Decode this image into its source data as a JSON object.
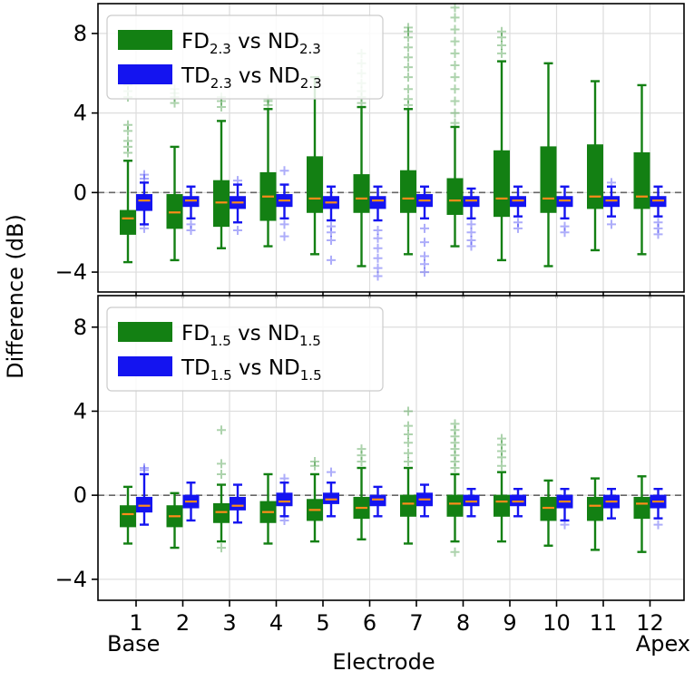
{
  "chart_data": {
    "type": "box",
    "xlabel": "Electrode",
    "ylabel": "Difference (dB)",
    "categories": [
      "1",
      "2",
      "3",
      "4",
      "5",
      "6",
      "7",
      "8",
      "9",
      "10",
      "11",
      "12"
    ],
    "x_end_labels": {
      "left": "Base",
      "right": "Apex"
    },
    "yticks": [
      -4,
      0,
      4,
      8
    ],
    "ytick_labels": [
      "−4",
      "0",
      "4",
      "8"
    ],
    "ylim": [
      -5,
      9.5
    ],
    "reference_line": 0,
    "grid": true,
    "colors": {
      "green": "#138013",
      "blue": "#1414f0",
      "median": "#ff8c1a",
      "reference": "#666666",
      "grid": "#dddddd"
    },
    "panels": [
      {
        "id": "top",
        "legend": [
          {
            "series": "FD",
            "text": "FD",
            "sub": "2.3",
            "mid": " vs ND",
            "sub2": "2.3",
            "color": "#138013"
          },
          {
            "series": "TD",
            "text": "TD",
            "sub": "2.3",
            "mid": " vs ND",
            "sub2": "2.3",
            "color": "#1414f0"
          }
        ],
        "series": [
          {
            "name": "FD2.3 vs ND2.3",
            "color": "#138013",
            "boxes": [
              {
                "whislo": -3.5,
                "q1": -2.1,
                "med": -1.3,
                "q3": -0.9,
                "whishi": 1.6,
                "fliers": [
                  2.0,
                  2.3,
                  2.6,
                  3.1,
                  3.4,
                  4.8,
                  5.1,
                  5.4
                ]
              },
              {
                "whislo": -3.4,
                "q1": -1.8,
                "med": -1.0,
                "q3": -0.1,
                "whishi": 2.3,
                "fliers": [
                  4.5,
                  4.8,
                  5.0,
                  5.2
                ]
              },
              {
                "whislo": -2.8,
                "q1": -1.7,
                "med": -0.5,
                "q3": 0.6,
                "whishi": 3.6,
                "fliers": [
                  4.3,
                  4.6,
                  4.8
                ]
              },
              {
                "whislo": -2.7,
                "q1": -1.4,
                "med": -0.2,
                "q3": 1.0,
                "whishi": 4.2,
                "fliers": [
                  4.4,
                  4.6,
                  4.7
                ]
              },
              {
                "whislo": -3.1,
                "q1": -1.0,
                "med": -0.3,
                "q3": 1.8,
                "whishi": 5.8,
                "fliers": []
              },
              {
                "whislo": -3.7,
                "q1": -1.0,
                "med": -0.3,
                "q3": 0.9,
                "whishi": 4.3,
                "fliers": [
                  4.5,
                  4.8,
                  5.1,
                  5.5,
                  6.0,
                  6.5,
                  7.0
                ]
              },
              {
                "whislo": -3.1,
                "q1": -1.0,
                "med": -0.3,
                "q3": 1.1,
                "whishi": 4.2,
                "fliers": [
                  4.4,
                  4.7,
                  5.2,
                  5.8,
                  6.3,
                  6.8,
                  7.3,
                  7.8,
                  8.1,
                  8.3
                ]
              },
              {
                "whislo": -2.7,
                "q1": -1.1,
                "med": -0.4,
                "q3": 0.7,
                "whishi": 3.3,
                "fliers": [
                  3.5,
                  4.0,
                  4.6,
                  5.2,
                  5.8,
                  6.4,
                  7.0,
                  7.6,
                  8.2,
                  8.8,
                  9.3
                ]
              },
              {
                "whislo": -3.4,
                "q1": -1.2,
                "med": -0.3,
                "q3": 2.1,
                "whishi": 6.6,
                "fliers": [
                  7.0,
                  7.4,
                  7.8,
                  8.1
                ]
              },
              {
                "whislo": -3.7,
                "q1": -1.0,
                "med": -0.3,
                "q3": 2.3,
                "whishi": 6.5,
                "fliers": []
              },
              {
                "whislo": -2.9,
                "q1": -0.8,
                "med": -0.2,
                "q3": 2.4,
                "whishi": 5.6,
                "fliers": []
              },
              {
                "whislo": -3.1,
                "q1": -0.8,
                "med": -0.2,
                "q3": 2.0,
                "whishi": 5.4,
                "fliers": []
              }
            ]
          },
          {
            "name": "TD2.3 vs ND2.3",
            "color": "#1414f0",
            "boxes": [
              {
                "whislo": -1.6,
                "q1": -0.9,
                "med": -0.4,
                "q3": -0.1,
                "whishi": 0.5,
                "fliers": [
                  -1.8,
                  0.7,
                  0.9
                ]
              },
              {
                "whislo": -1.3,
                "q1": -0.7,
                "med": -0.4,
                "q3": -0.2,
                "whishi": 0.3,
                "fliers": [
                  -1.6,
                  -1.9
                ]
              },
              {
                "whislo": -1.5,
                "q1": -0.8,
                "med": -0.5,
                "q3": -0.2,
                "whishi": 0.4,
                "fliers": [
                  -1.9,
                  0.6
                ]
              },
              {
                "whislo": -1.3,
                "q1": -0.7,
                "med": -0.4,
                "q3": -0.1,
                "whishi": 0.4,
                "fliers": [
                  -2.2,
                  -1.6,
                  1.1
                ]
              },
              {
                "whislo": -1.4,
                "q1": -0.8,
                "med": -0.5,
                "q3": -0.2,
                "whishi": 0.3,
                "fliers": [
                  -1.7,
                  -2.0,
                  -2.4,
                  -3.4
                ]
              },
              {
                "whislo": -1.4,
                "q1": -0.8,
                "med": -0.4,
                "q3": -0.2,
                "whishi": 0.3,
                "fliers": [
                  -1.9,
                  -2.3,
                  -2.8,
                  -3.3,
                  -3.8,
                  -4.2
                ]
              },
              {
                "whislo": -1.3,
                "q1": -0.7,
                "med": -0.4,
                "q3": -0.1,
                "whishi": 0.3,
                "fliers": [
                  -1.8,
                  -2.5,
                  -3.2,
                  -3.6,
                  -4.0
                ]
              },
              {
                "whislo": -1.3,
                "q1": -0.7,
                "med": -0.4,
                "q3": -0.2,
                "whishi": 0.2,
                "fliers": [
                  -1.6,
                  -2.0,
                  -2.4,
                  -2.7
                ]
              },
              {
                "whislo": -1.2,
                "q1": -0.7,
                "med": -0.4,
                "q3": -0.2,
                "whishi": 0.3,
                "fliers": [
                  -1.5,
                  -1.8
                ]
              },
              {
                "whislo": -1.3,
                "q1": -0.7,
                "med": -0.4,
                "q3": -0.2,
                "whishi": 0.3,
                "fliers": [
                  -1.7,
                  -2.0
                ]
              },
              {
                "whislo": -1.2,
                "q1": -0.7,
                "med": -0.4,
                "q3": -0.2,
                "whishi": 0.3,
                "fliers": [
                  -1.6,
                  0.5
                ]
              },
              {
                "whislo": -1.2,
                "q1": -0.7,
                "med": -0.4,
                "q3": -0.2,
                "whishi": 0.3,
                "fliers": [
                  -1.5,
                  -1.8,
                  -2.1
                ]
              }
            ]
          }
        ]
      },
      {
        "id": "bottom",
        "legend": [
          {
            "series": "FD",
            "text": "FD",
            "sub": "1.5",
            "mid": " vs ND",
            "sub2": "1.5",
            "color": "#138013"
          },
          {
            "series": "TD",
            "text": "TD",
            "sub": "1.5",
            "mid": " vs ND",
            "sub2": "1.5",
            "color": "#1414f0"
          }
        ],
        "series": [
          {
            "name": "FD1.5 vs ND1.5",
            "color": "#138013",
            "boxes": [
              {
                "whislo": -2.3,
                "q1": -1.5,
                "med": -0.9,
                "q3": -0.5,
                "whishi": 0.4,
                "fliers": []
              },
              {
                "whislo": -2.5,
                "q1": -1.5,
                "med": -1.0,
                "q3": -0.5,
                "whishi": 0.1,
                "fliers": []
              },
              {
                "whislo": -2.2,
                "q1": -1.3,
                "med": -0.8,
                "q3": -0.4,
                "whishi": 0.5,
                "fliers": [
                  -2.5,
                  1.0,
                  1.5,
                  3.1
                ]
              },
              {
                "whislo": -2.3,
                "q1": -1.3,
                "med": -0.8,
                "q3": -0.3,
                "whishi": 1.0,
                "fliers": []
              },
              {
                "whislo": -2.2,
                "q1": -1.2,
                "med": -0.7,
                "q3": -0.2,
                "whishi": 1.0,
                "fliers": [
                  1.4,
                  1.6
                ]
              },
              {
                "whislo": -2.1,
                "q1": -1.1,
                "med": -0.6,
                "q3": -0.1,
                "whishi": 1.3,
                "fliers": [
                  1.6,
                  1.9,
                  2.2
                ]
              },
              {
                "whislo": -2.3,
                "q1": -1.0,
                "med": -0.4,
                "q3": 0.0,
                "whishi": 1.3,
                "fliers": [
                  1.6,
                  2.0,
                  2.5,
                  2.9,
                  3.3,
                  4.0
                ]
              },
              {
                "whislo": -2.2,
                "q1": -1.0,
                "med": -0.4,
                "q3": 0.0,
                "whishi": 1.0,
                "fliers": [
                  -2.7,
                  1.3,
                  1.6,
                  1.9,
                  2.2,
                  2.5,
                  2.8,
                  3.1,
                  3.4
                ]
              },
              {
                "whislo": -2.2,
                "q1": -1.0,
                "med": -0.3,
                "q3": 0.0,
                "whishi": 1.1,
                "fliers": [
                  1.4,
                  1.8,
                  2.1,
                  2.4,
                  2.7
                ]
              },
              {
                "whislo": -2.4,
                "q1": -1.2,
                "med": -0.6,
                "q3": -0.1,
                "whishi": 0.7,
                "fliers": []
              },
              {
                "whislo": -2.6,
                "q1": -1.2,
                "med": -0.5,
                "q3": -0.1,
                "whishi": 0.8,
                "fliers": []
              },
              {
                "whislo": -2.7,
                "q1": -1.1,
                "med": -0.4,
                "q3": -0.1,
                "whishi": 0.9,
                "fliers": []
              }
            ]
          },
          {
            "name": "TD1.5 vs ND1.5",
            "color": "#1414f0",
            "boxes": [
              {
                "whislo": -1.4,
                "q1": -0.8,
                "med": -0.5,
                "q3": -0.1,
                "whishi": 1.0,
                "fliers": [
                  1.2,
                  1.3
                ]
              },
              {
                "whislo": -1.2,
                "q1": -0.6,
                "med": -0.3,
                "q3": 0.0,
                "whishi": 0.6,
                "fliers": []
              },
              {
                "whislo": -1.3,
                "q1": -0.7,
                "med": -0.5,
                "q3": -0.1,
                "whishi": 0.5,
                "fliers": []
              },
              {
                "whislo": -1.0,
                "q1": -0.5,
                "med": -0.3,
                "q3": 0.1,
                "whishi": 0.6,
                "fliers": [
                  -1.2,
                  0.8
                ]
              },
              {
                "whislo": -1.0,
                "q1": -0.4,
                "med": -0.2,
                "q3": 0.1,
                "whishi": 0.6,
                "fliers": [
                  1.1
                ]
              },
              {
                "whislo": -1.0,
                "q1": -0.5,
                "med": -0.2,
                "q3": 0.0,
                "whishi": 0.4,
                "fliers": []
              },
              {
                "whislo": -1.0,
                "q1": -0.5,
                "med": -0.2,
                "q3": 0.1,
                "whishi": 0.5,
                "fliers": []
              },
              {
                "whislo": -1.0,
                "q1": -0.5,
                "med": -0.3,
                "q3": 0.0,
                "whishi": 0.3,
                "fliers": []
              },
              {
                "whislo": -1.0,
                "q1": -0.5,
                "med": -0.3,
                "q3": 0.0,
                "whishi": 0.3,
                "fliers": []
              },
              {
                "whislo": -1.2,
                "q1": -0.6,
                "med": -0.3,
                "q3": 0.0,
                "whishi": 0.3,
                "fliers": [
                  -1.4
                ]
              },
              {
                "whislo": -1.1,
                "q1": -0.6,
                "med": -0.3,
                "q3": 0.0,
                "whishi": 0.3,
                "fliers": []
              },
              {
                "whislo": -1.1,
                "q1": -0.6,
                "med": -0.3,
                "q3": 0.0,
                "whishi": 0.3,
                "fliers": [
                  -1.4
                ]
              }
            ]
          }
        ]
      }
    ]
  }
}
